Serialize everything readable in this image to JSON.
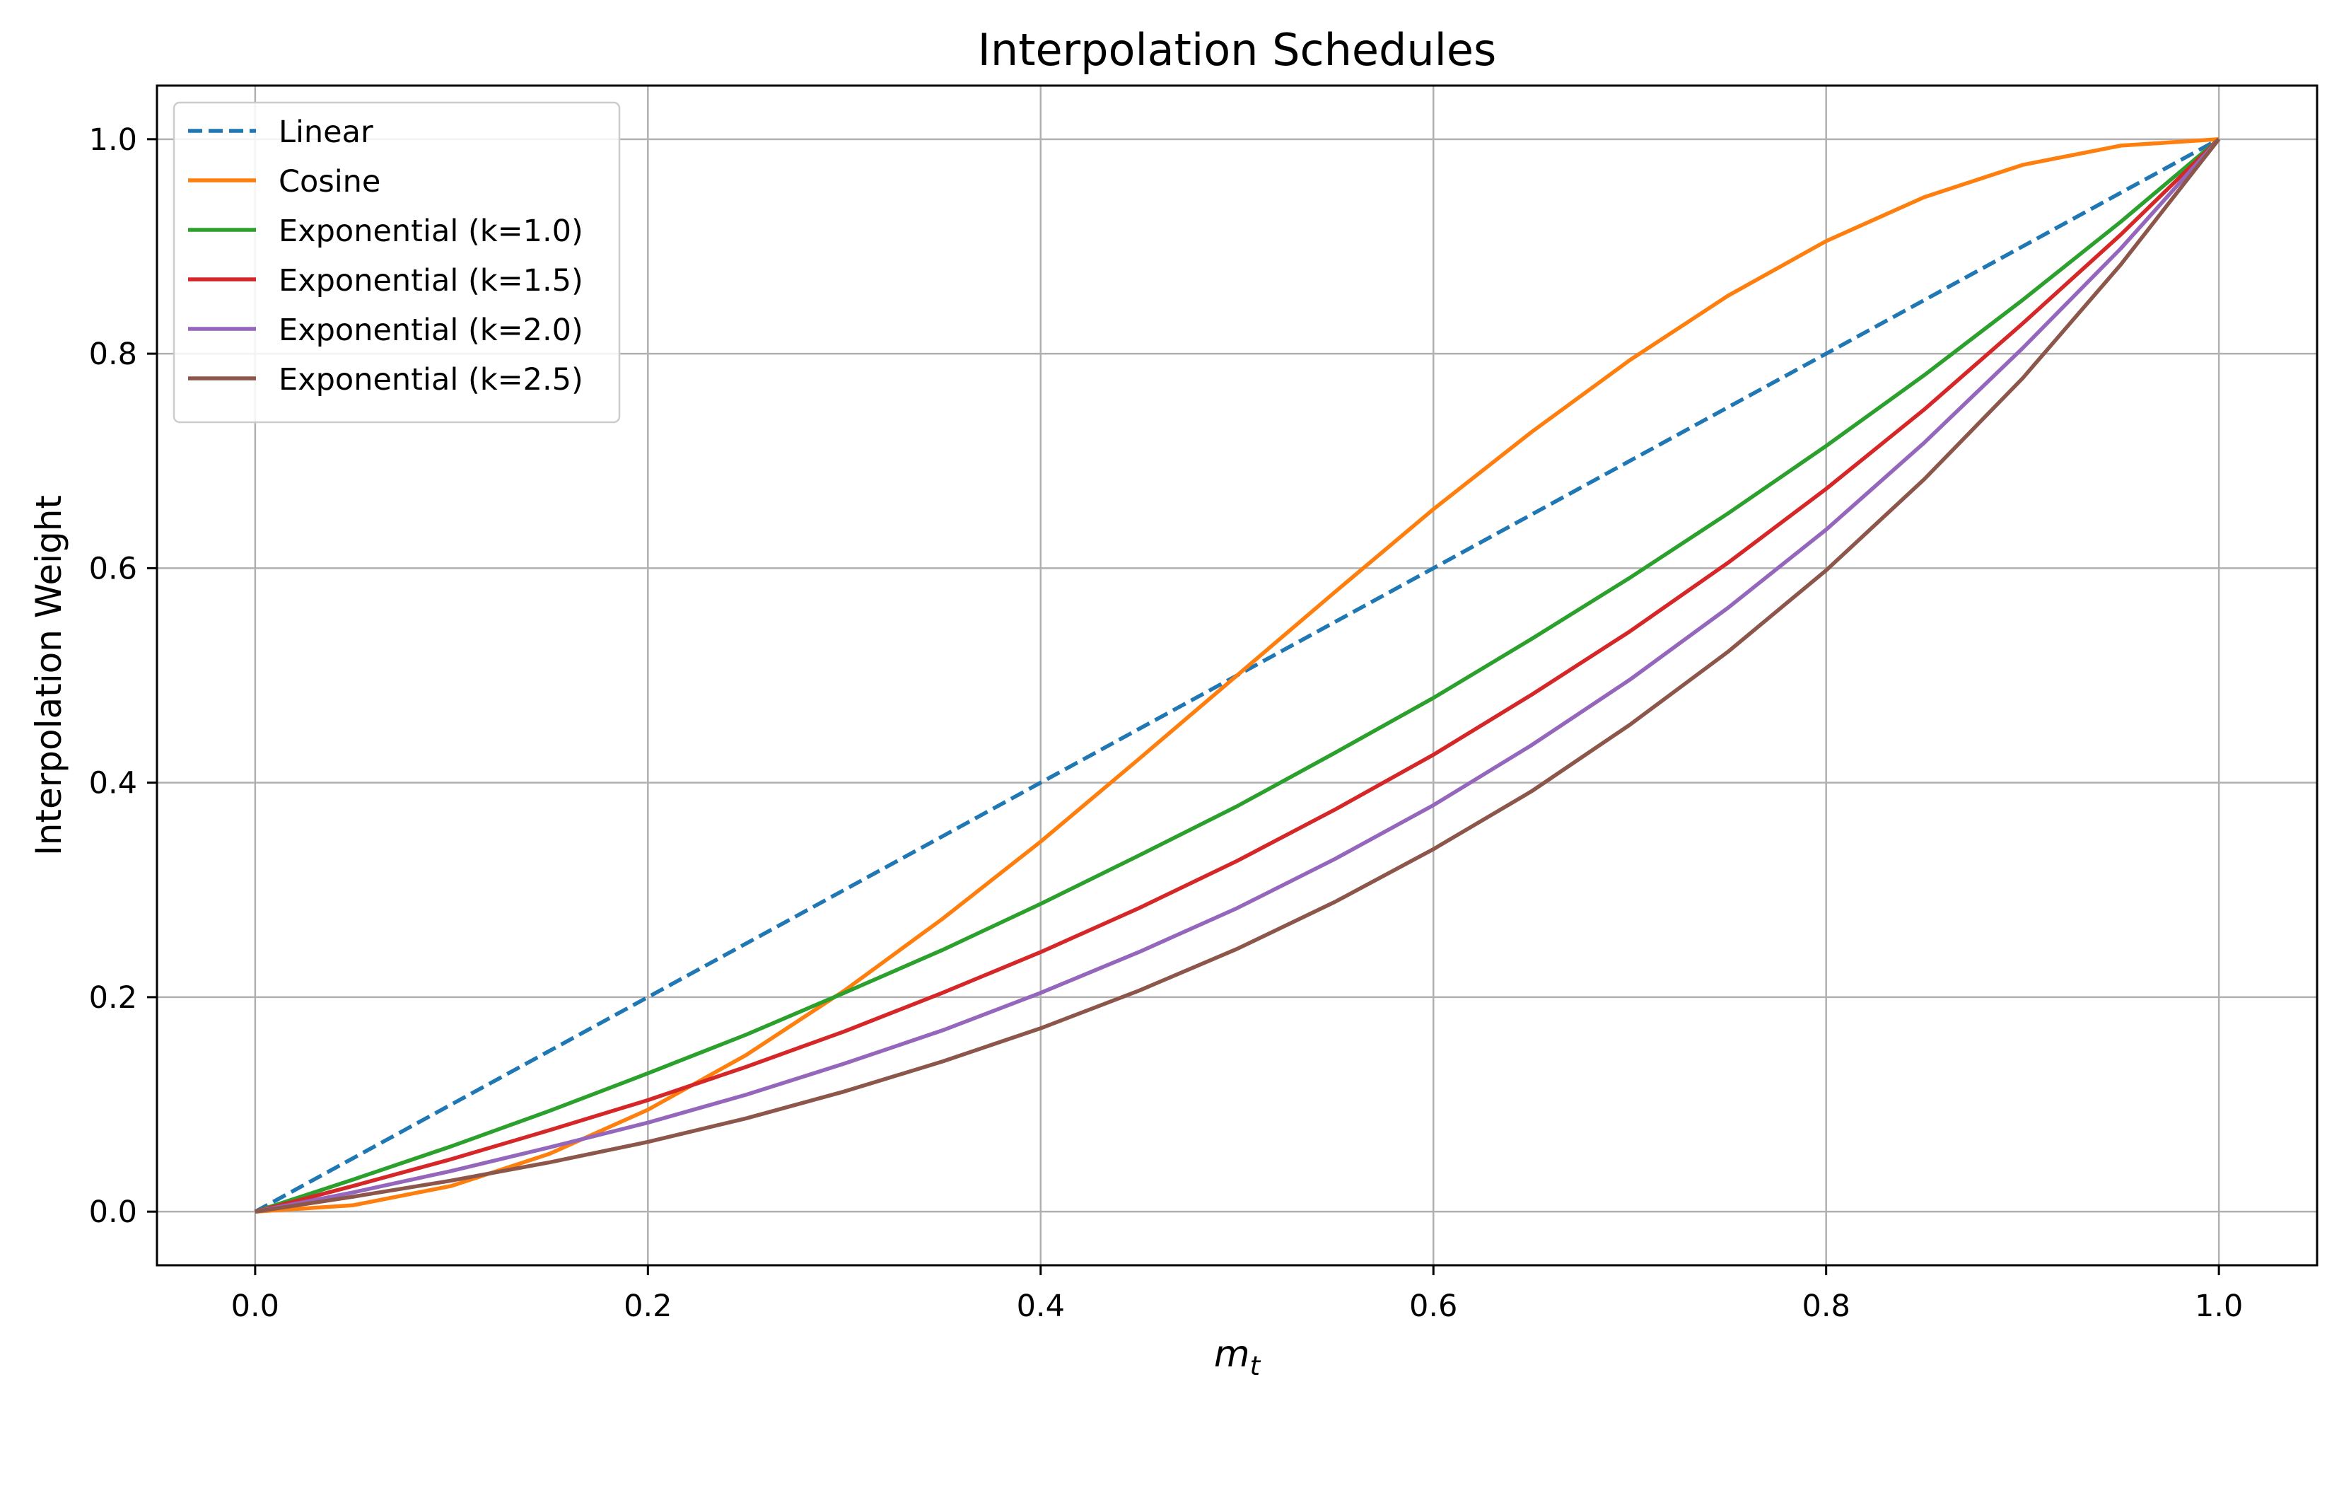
{
  "chart_data": {
    "type": "line",
    "title": "Interpolation Schedules",
    "xlabel": "m",
    "xlabel_subscript": "t",
    "ylabel": "Interpolation Weight",
    "xlim": [
      -0.05,
      1.05
    ],
    "ylim": [
      -0.05,
      1.05
    ],
    "xticks": [
      0.0,
      0.2,
      0.4,
      0.6,
      0.8,
      1.0
    ],
    "xtick_labels": [
      "0.0",
      "0.2",
      "0.4",
      "0.6",
      "0.8",
      "1.0"
    ],
    "yticks": [
      0.0,
      0.2,
      0.4,
      0.6,
      0.8,
      1.0
    ],
    "ytick_labels": [
      "0.0",
      "0.2",
      "0.4",
      "0.6",
      "0.8",
      "1.0"
    ],
    "grid": true,
    "legend_position": "upper-left",
    "x": [
      0.0,
      0.05,
      0.1,
      0.15,
      0.2,
      0.25,
      0.3,
      0.35,
      0.4,
      0.45,
      0.5,
      0.55,
      0.6,
      0.65,
      0.7,
      0.75,
      0.8,
      0.85,
      0.9,
      0.95,
      1.0
    ],
    "series": [
      {
        "name": "Linear",
        "color": "#1f77b4",
        "dashed": true,
        "values": [
          0.0,
          0.05,
          0.1,
          0.15,
          0.2,
          0.25,
          0.3,
          0.35,
          0.4,
          0.45,
          0.5,
          0.55,
          0.6,
          0.65,
          0.7,
          0.75,
          0.8,
          0.85,
          0.9,
          0.95,
          1.0
        ]
      },
      {
        "name": "Cosine",
        "color": "#ff7f0e",
        "dashed": false,
        "values": [
          0.0,
          0.006,
          0.024,
          0.054,
          0.095,
          0.146,
          0.206,
          0.273,
          0.345,
          0.422,
          0.5,
          0.578,
          0.655,
          0.727,
          0.794,
          0.854,
          0.905,
          0.946,
          0.976,
          0.994,
          1.0
        ]
      },
      {
        "name": "Exponential (k=1.0)",
        "color": "#2ca02c",
        "dashed": false,
        "values": [
          0.0,
          0.03,
          0.061,
          0.094,
          0.129,
          0.165,
          0.204,
          0.244,
          0.287,
          0.332,
          0.378,
          0.428,
          0.479,
          0.534,
          0.591,
          0.651,
          0.714,
          0.78,
          0.85,
          0.923,
          1.0
        ]
      },
      {
        "name": "Exponential (k=1.5)",
        "color": "#d62728",
        "dashed": false,
        "values": [
          0.0,
          0.024,
          0.049,
          0.076,
          0.104,
          0.135,
          0.168,
          0.204,
          0.242,
          0.283,
          0.327,
          0.375,
          0.426,
          0.482,
          0.541,
          0.605,
          0.674,
          0.748,
          0.828,
          0.911,
          1.0
        ]
      },
      {
        "name": "Exponential (k=2.0)",
        "color": "#9467bd",
        "dashed": false,
        "values": [
          0.0,
          0.018,
          0.038,
          0.06,
          0.083,
          0.109,
          0.138,
          0.169,
          0.204,
          0.242,
          0.283,
          0.329,
          0.379,
          0.435,
          0.496,
          0.563,
          0.636,
          0.717,
          0.805,
          0.898,
          1.0
        ]
      },
      {
        "name": "Exponential (k=2.5)",
        "color": "#8c564b",
        "dashed": false,
        "values": [
          0.0,
          0.014,
          0.029,
          0.046,
          0.065,
          0.087,
          0.112,
          0.14,
          0.171,
          0.206,
          0.245,
          0.289,
          0.338,
          0.392,
          0.454,
          0.522,
          0.598,
          0.683,
          0.777,
          0.883,
          1.0
        ]
      }
    ]
  }
}
